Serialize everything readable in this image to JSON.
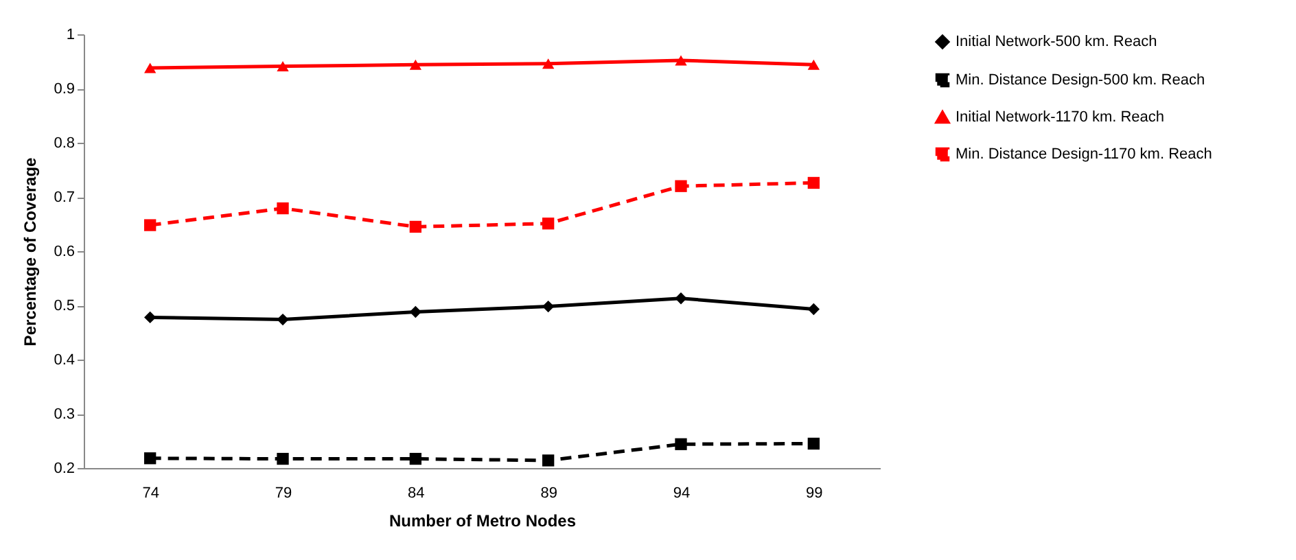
{
  "chart_data": {
    "type": "line",
    "xlabel": "Number of Metro Nodes",
    "ylabel": "Percentage of Coverage",
    "categories": [
      "74",
      "79",
      "84",
      "89",
      "94",
      "99"
    ],
    "ylim": [
      0.2,
      1
    ],
    "yticks": [
      {
        "value": 0.2,
        "label": "0.2"
      },
      {
        "value": 0.3,
        "label": "0.3"
      },
      {
        "value": 0.4,
        "label": "0.4"
      },
      {
        "value": 0.5,
        "label": "0.5"
      },
      {
        "value": 0.6,
        "label": "0.6"
      },
      {
        "value": 0.7,
        "label": "0.7"
      },
      {
        "value": 0.8,
        "label": "0.8"
      },
      {
        "value": 0.9,
        "label": "0.9"
      },
      {
        "value": 1,
        "label": "1"
      }
    ],
    "grid": false,
    "legend": "right",
    "series": [
      {
        "name": "Initial Network-500 km. Reach",
        "color": "#000000",
        "marker": "diamond",
        "line_style": "solid",
        "values": [
          0.478,
          0.474,
          0.488,
          0.498,
          0.513,
          0.493
        ]
      },
      {
        "name": "Min. Distance Design-500 km. Reach",
        "color": "#000000",
        "marker": "square",
        "line_style": "dashed",
        "values": [
          0.218,
          0.217,
          0.217,
          0.214,
          0.244,
          0.245
        ]
      },
      {
        "name": "Initial Network-1170 km. Reach",
        "color": "#ff0000",
        "marker": "triangle",
        "line_style": "solid",
        "values": [
          0.938,
          0.941,
          0.944,
          0.946,
          0.952,
          0.944
        ]
      },
      {
        "name": "Min. Distance Design-1170 km. Reach",
        "color": "#ff0000",
        "marker": "square",
        "line_style": "dashed",
        "values": [
          0.648,
          0.679,
          0.645,
          0.651,
          0.72,
          0.726
        ]
      }
    ]
  }
}
